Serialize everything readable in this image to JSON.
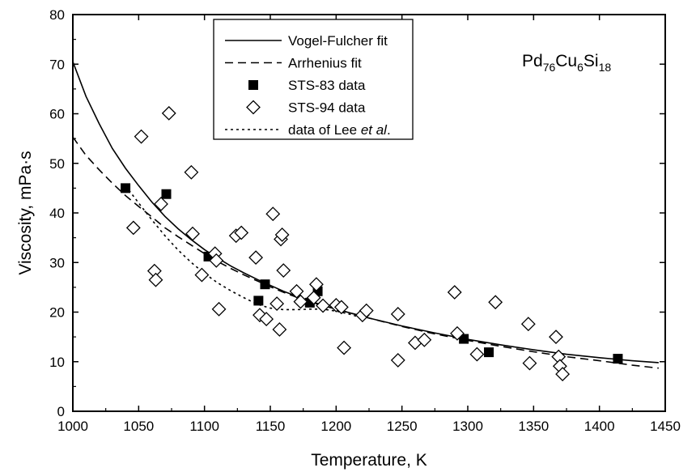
{
  "chart_data": {
    "type": "scatter",
    "xlabel": "Temperature, K",
    "ylabel": "Viscosity, mPa·s",
    "xlim": [
      1000,
      1450
    ],
    "ylim": [
      0,
      80
    ],
    "xticks": [
      1000,
      1050,
      1100,
      1150,
      1200,
      1250,
      1300,
      1350,
      1400,
      1450
    ],
    "yticks": [
      0,
      10,
      20,
      30,
      40,
      50,
      60,
      70,
      80
    ],
    "annotation": {
      "base": "Pd",
      "sub1": "76",
      "mid1": "Cu",
      "sub2": "6",
      "mid2": "Si",
      "sub3": "18"
    },
    "legend_position": "top-center",
    "series": [
      {
        "name": "Vogel-Fulcher fit",
        "kind": "line",
        "style": "solid",
        "x": [
          1000,
          1010,
          1020,
          1030,
          1040,
          1050,
          1060,
          1070,
          1080,
          1090,
          1100,
          1110,
          1120,
          1130,
          1140,
          1150,
          1160,
          1170,
          1180,
          1190,
          1200,
          1225,
          1250,
          1275,
          1300,
          1325,
          1350,
          1375,
          1400,
          1425,
          1445
        ],
        "y": [
          70.5,
          63.5,
          58.0,
          53.0,
          49.0,
          45.5,
          42.2,
          39.3,
          36.8,
          34.6,
          32.6,
          30.9,
          29.3,
          27.9,
          26.6,
          25.4,
          24.2,
          23.2,
          22.2,
          21.4,
          20.6,
          18.8,
          17.2,
          15.8,
          14.5,
          13.4,
          12.4,
          11.5,
          10.8,
          10.2,
          9.8
        ]
      },
      {
        "name": "Arrhenius fit",
        "kind": "line",
        "style": "dashed",
        "x": [
          1000,
          1010,
          1020,
          1030,
          1040,
          1050,
          1060,
          1070,
          1080,
          1090,
          1100,
          1110,
          1120,
          1130,
          1140,
          1150,
          1160,
          1170,
          1180,
          1190,
          1200,
          1225,
          1250,
          1275,
          1300,
          1325,
          1350,
          1375,
          1400,
          1425,
          1445
        ],
        "y": [
          55.3,
          51.6,
          48.7,
          46.0,
          43.5,
          41.3,
          39.2,
          37.0,
          35.2,
          33.5,
          31.8,
          30.2,
          28.8,
          27.5,
          26.3,
          25.1,
          24.0,
          23.0,
          22.1,
          21.3,
          20.6,
          18.8,
          17.1,
          15.6,
          14.3,
          13.1,
          12.0,
          11.0,
          10.2,
          9.3,
          8.7
        ]
      },
      {
        "name": "STS-83 data",
        "kind": "scatter",
        "marker": "filled-square",
        "x": [
          1040,
          1071,
          1103,
          1141,
          1146,
          1180,
          1186,
          1297,
          1316,
          1414
        ],
        "y": [
          45.0,
          43.8,
          31.2,
          22.3,
          25.6,
          21.9,
          24.2,
          14.6,
          11.9,
          10.6
        ]
      },
      {
        "name": "STS-94 data",
        "kind": "scatter",
        "marker": "open-diamond",
        "x": [
          1046,
          1052,
          1062,
          1063,
          1067,
          1073,
          1090,
          1091,
          1098,
          1108,
          1109,
          1111,
          1124,
          1128,
          1139,
          1142,
          1147,
          1152,
          1155,
          1157,
          1158,
          1159,
          1160,
          1170,
          1173,
          1183,
          1185,
          1190,
          1200,
          1204,
          1206,
          1220,
          1223,
          1247,
          1247,
          1260,
          1267,
          1290,
          1292,
          1307,
          1321,
          1346,
          1347,
          1367,
          1369,
          1370,
          1372
        ],
        "y": [
          37.0,
          55.4,
          28.3,
          26.5,
          41.8,
          60.1,
          48.2,
          35.8,
          27.5,
          31.8,
          30.4,
          20.6,
          35.4,
          36.0,
          31.0,
          19.4,
          18.6,
          39.8,
          21.7,
          16.5,
          34.7,
          35.6,
          28.4,
          24.2,
          22.1,
          22.9,
          25.6,
          21.3,
          21.4,
          21.0,
          12.8,
          19.4,
          20.3,
          19.6,
          10.3,
          13.8,
          14.4,
          24.0,
          15.7,
          11.5,
          22.0,
          17.6,
          9.7,
          15.0,
          11.0,
          9.1,
          7.5
        ]
      },
      {
        "name": "data of Lee et al.",
        "name_parts": [
          "data of Lee ",
          "et al",
          "."
        ],
        "kind": "line",
        "style": "dotted",
        "x": [
          1040,
          1050,
          1060,
          1070,
          1080,
          1090,
          1100,
          1110,
          1120,
          1130,
          1140,
          1150,
          1160,
          1170,
          1180,
          1190,
          1200,
          1210,
          1220
        ],
        "y": [
          45.5,
          42.0,
          38.6,
          35.4,
          32.5,
          30.0,
          27.8,
          25.9,
          24.3,
          22.9,
          21.6,
          20.8,
          20.5,
          20.5,
          20.6,
          20.6,
          20.2,
          19.6,
          18.8
        ]
      }
    ]
  }
}
